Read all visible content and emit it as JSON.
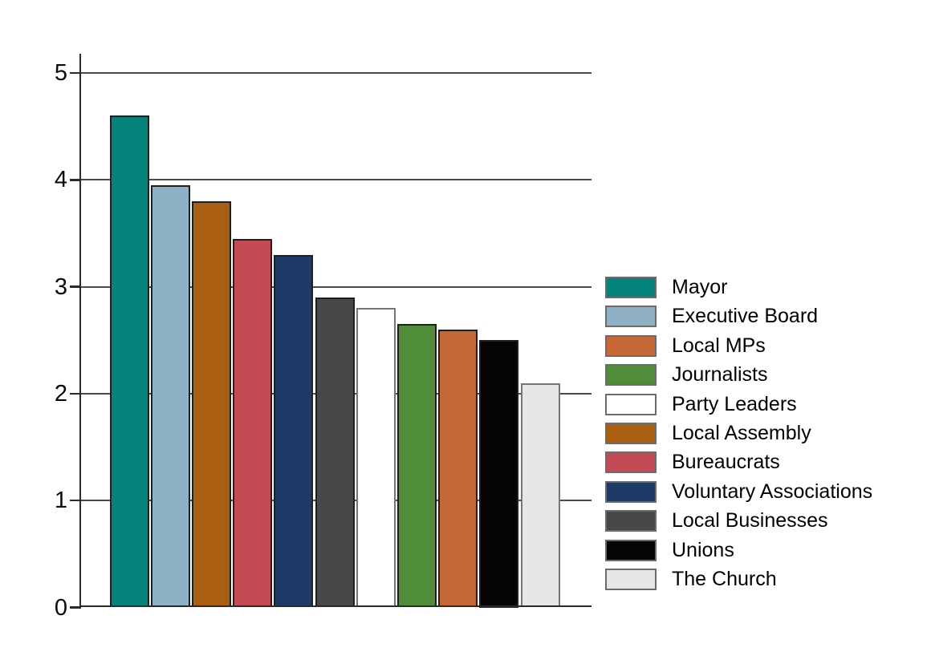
{
  "figure": {
    "background": "#ffffff"
  },
  "chart_data": {
    "type": "bar",
    "title": "",
    "xlabel": "",
    "ylabel": "",
    "ylim": [
      0,
      5
    ],
    "yticks": [
      0,
      1,
      2,
      3,
      4,
      5
    ],
    "ytick_labels": [
      "0",
      "1",
      "2",
      "3",
      "4",
      "5"
    ],
    "grid": "horizontal",
    "legend_position": "right",
    "bars": [
      {
        "label": "Mayor",
        "value": 4.6,
        "color": "#038379",
        "border": "#1f1f1f"
      },
      {
        "label": "Executive Board",
        "value": 3.95,
        "color": "#8fb1c6",
        "border": "#1f1f1f"
      },
      {
        "label": "Local Assembly",
        "value": 3.8,
        "color": "#a95e10",
        "border": "#1f1f1f"
      },
      {
        "label": "Bureaucrats",
        "value": 3.45,
        "color": "#c44b55",
        "border": "#1f1f1f"
      },
      {
        "label": "Voluntary Associations",
        "value": 3.3,
        "color": "#1e3a66",
        "border": "#1f1f1f"
      },
      {
        "label": "Local Businesses",
        "value": 2.9,
        "color": "#484848",
        "border": "#1f1f1f"
      },
      {
        "label": "Party Leaders",
        "value": 2.8,
        "color": "#ffffff",
        "border": "#757575"
      },
      {
        "label": "Journalists",
        "value": 2.65,
        "color": "#4f8d38",
        "border": "#1f1f1f"
      },
      {
        "label": "Local MPs",
        "value": 2.6,
        "color": "#c66736",
        "border": "#1f1f1f"
      },
      {
        "label": "Unions",
        "value": 2.5,
        "color": "#050505",
        "border": "#1f1f1f"
      },
      {
        "label": "The Church",
        "value": 2.1,
        "color": "#e7e7e7",
        "border": "#757575"
      }
    ],
    "legend_order": [
      "Mayor",
      "Executive Board",
      "Local MPs",
      "Journalists",
      "Party Leaders",
      "Local Assembly",
      "Bureaucrats",
      "Voluntary Associations",
      "Local Businesses",
      "Unions",
      "The Church"
    ],
    "style": {
      "grid_color": "#4a4a4a",
      "axis_color": "#2a2a2a",
      "tick_label_color": "#0a0a0a",
      "legend_text_color": "#000000",
      "swatch_border": "#6b6b6b"
    }
  }
}
